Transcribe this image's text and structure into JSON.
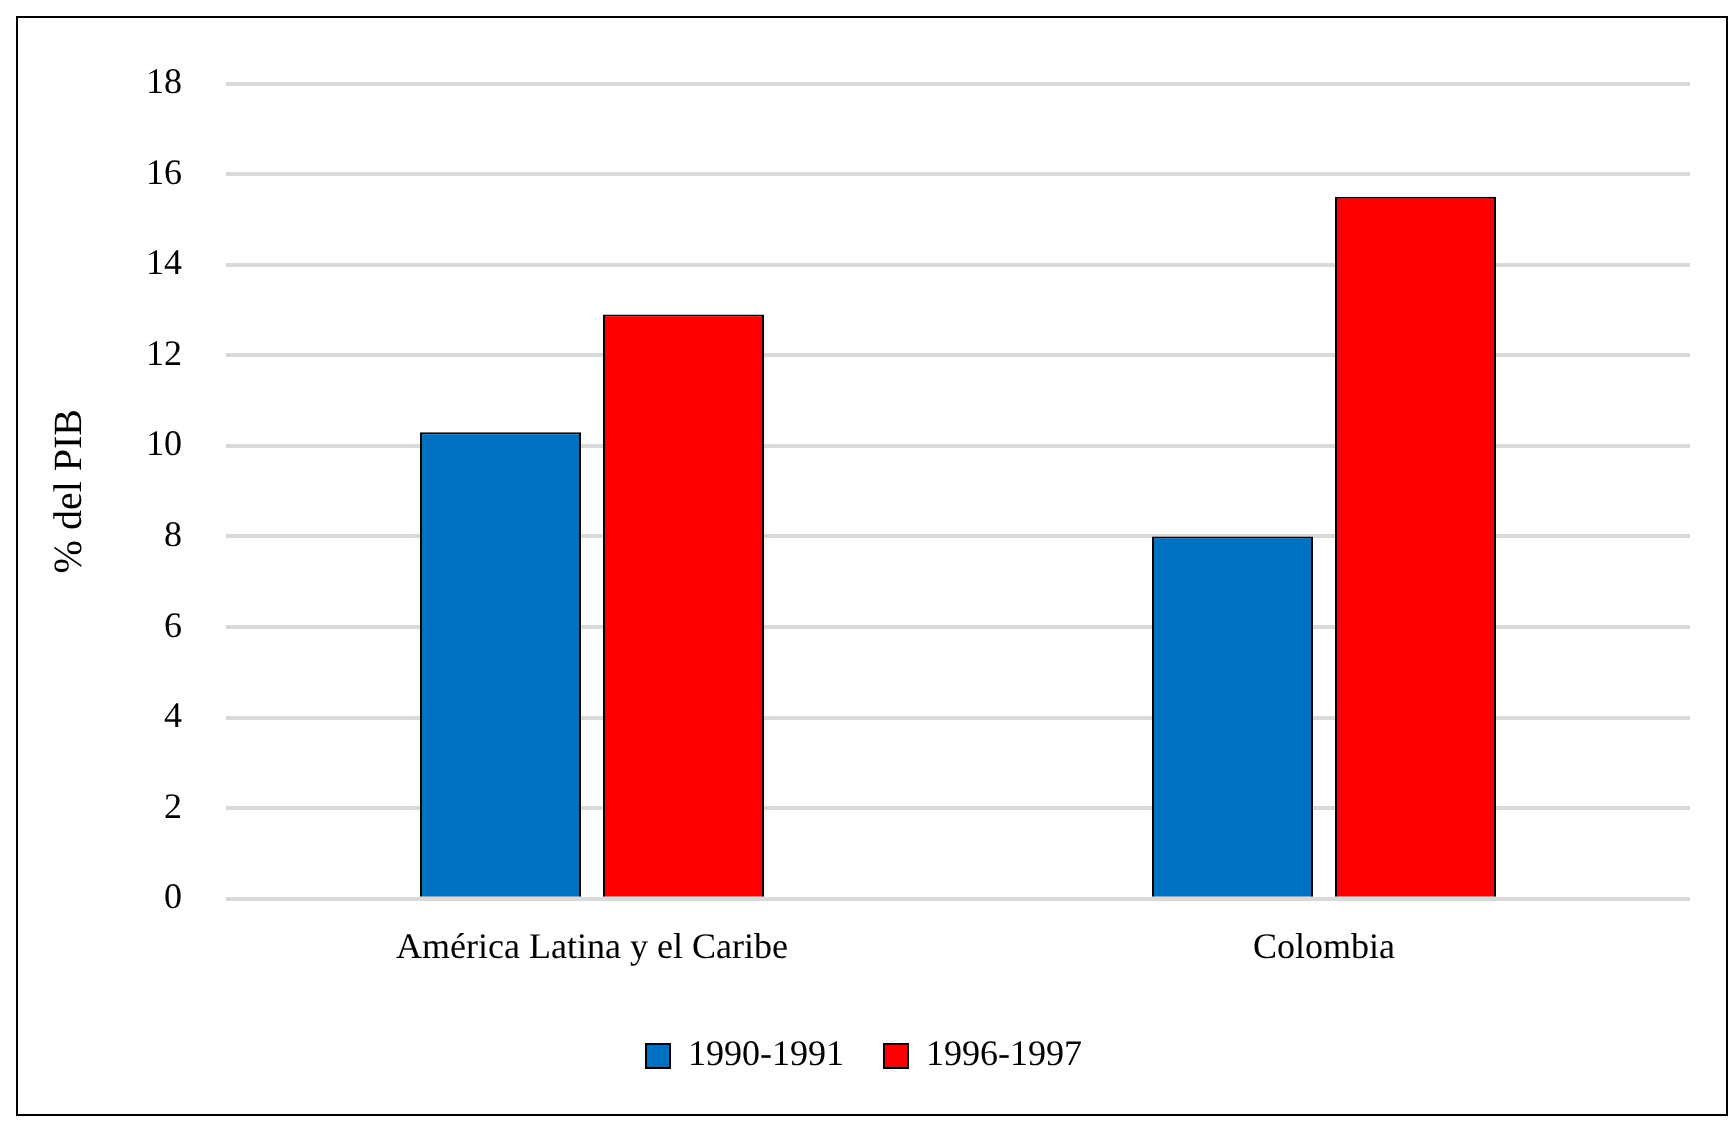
{
  "chart_data": {
    "type": "bar",
    "ylabel": "% del PIB",
    "categories": [
      "América Latina y el Caribe",
      "Colombia"
    ],
    "series": [
      {
        "name": "1990-1991",
        "color": "#0070c0",
        "values": [
          10.3,
          8.0
        ]
      },
      {
        "name": "1996-1997",
        "color": "#ff0000",
        "values": [
          12.9,
          15.5
        ]
      }
    ],
    "ylim": [
      0,
      18
    ],
    "yticks": [
      0,
      2,
      4,
      6,
      8,
      10,
      12,
      14,
      16,
      18
    ],
    "grid": "y",
    "legend": "bottom"
  }
}
